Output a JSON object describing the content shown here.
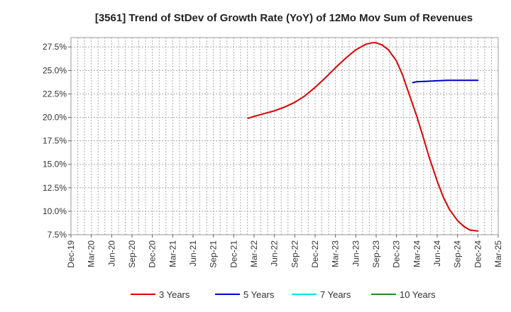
{
  "chart_data": {
    "type": "line",
    "title": "[3561]  Trend of StDev of Growth Rate (YoY) of 12Mo Mov Sum of Revenues",
    "xlabel": "",
    "ylabel": "",
    "x_ticks": [
      "Dec-19",
      "Mar-20",
      "Jun-20",
      "Sep-20",
      "Dec-20",
      "Mar-21",
      "Jun-21",
      "Sep-21",
      "Dec-21",
      "Mar-22",
      "Jun-22",
      "Sep-22",
      "Dec-22",
      "Mar-23",
      "Jun-23",
      "Sep-23",
      "Dec-23",
      "Mar-24",
      "Jun-24",
      "Sep-24",
      "Dec-24",
      "Mar-25"
    ],
    "y_ticks": [
      "7.5%",
      "10.0%",
      "12.5%",
      "15.0%",
      "17.5%",
      "20.0%",
      "22.5%",
      "25.0%",
      "27.5%"
    ],
    "ylim": [
      7.5,
      28.5
    ],
    "xlim_quarter_index": [
      0,
      21
    ],
    "grid": true,
    "legend_position": "bottom",
    "series": [
      {
        "name": "3 Years",
        "color": "#dd0000",
        "x": [
          8.7,
          9,
          9.5,
          10,
          10.5,
          11,
          11.5,
          12,
          12.5,
          13,
          13.5,
          14,
          14.5,
          14.8,
          15,
          15.3,
          15.6,
          16,
          16.3,
          16.6,
          17,
          17.3,
          17.6,
          18,
          18.3,
          18.6,
          19,
          19.3,
          19.6,
          20
        ],
        "y": [
          19.9,
          20.1,
          20.4,
          20.7,
          21.1,
          21.6,
          22.3,
          23.2,
          24.2,
          25.3,
          26.3,
          27.2,
          27.8,
          27.95,
          27.95,
          27.7,
          27.2,
          26.0,
          24.5,
          22.6,
          20.1,
          18.0,
          15.8,
          13.2,
          11.5,
          10.2,
          9.0,
          8.4,
          8.0,
          7.9
        ],
        "note": "x values are quarter indices from Dec-19"
      },
      {
        "name": "5 Years",
        "color": "#0000cc",
        "x": [
          16.8,
          17,
          17.5,
          18,
          18.5,
          19,
          19.5,
          20
        ],
        "y": [
          23.7,
          23.8,
          23.85,
          23.9,
          23.95,
          23.95,
          23.95,
          23.95
        ]
      },
      {
        "name": "7 Years",
        "color": "#00e5ee",
        "x": [],
        "y": []
      },
      {
        "name": "10 Years",
        "color": "#228b22",
        "x": [],
        "y": []
      }
    ]
  }
}
